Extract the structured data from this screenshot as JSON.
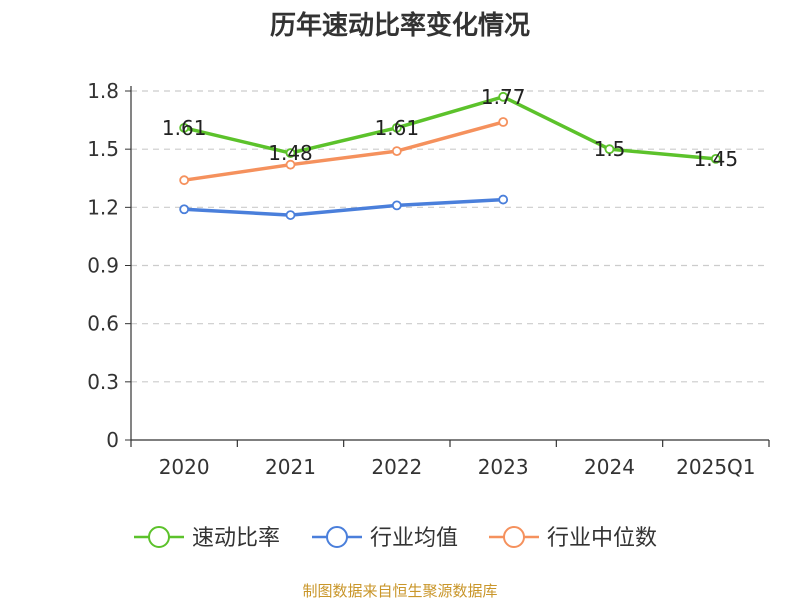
{
  "chart_data": {
    "type": "line",
    "title": "历年速动比率变化情况",
    "categories": [
      "2020",
      "2021",
      "2022",
      "2023",
      "2024",
      "2025Q1"
    ],
    "ylim": [
      0,
      1.8
    ],
    "yticks": [
      "0",
      "0.3",
      "0.6",
      "0.9",
      "1.2",
      "1.5",
      "1.8"
    ],
    "grid": true,
    "legend_position": "bottom",
    "series": [
      {
        "name": "速动比率",
        "color": "#5cc22b",
        "values": [
          1.61,
          1.48,
          1.61,
          1.77,
          1.5,
          1.45
        ],
        "labels": [
          "1.61",
          "1.48",
          "1.61",
          "1.77",
          "1.5",
          "1.45"
        ]
      },
      {
        "name": "行业均值",
        "color": "#4a7fdb",
        "values": [
          1.19,
          1.16,
          1.21,
          1.24,
          null,
          null
        ]
      },
      {
        "name": "行业中位数",
        "color": "#f5915d",
        "values": [
          1.34,
          1.42,
          1.49,
          1.64,
          null,
          null
        ]
      }
    ],
    "source": "制图数据来自恒生聚源数据库"
  }
}
